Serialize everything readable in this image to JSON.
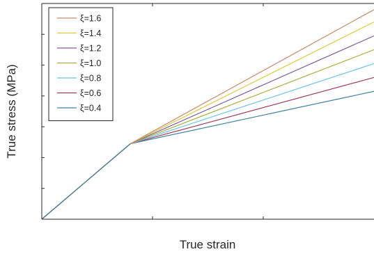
{
  "chart_data": {
    "type": "line",
    "title": "",
    "xlabel": "True strain",
    "ylabel": "True stress (MPa)",
    "xlim": [
      0,
      3
    ],
    "ylim": [
      0,
      14
    ],
    "grid": false,
    "tick_labels_shown": false,
    "legend_position": "top-left",
    "series": [
      {
        "name": "ξ=1.6",
        "color": "#c98a6a",
        "x": [
          0,
          0.8,
          3
        ],
        "y": [
          0,
          4.9,
          13.6
        ]
      },
      {
        "name": "ξ=1.4",
        "color": "#e0c840",
        "x": [
          0,
          0.8,
          3
        ],
        "y": [
          0,
          4.9,
          12.8
        ]
      },
      {
        "name": "ξ=1.2",
        "color": "#7a5e9c",
        "x": [
          0,
          0.8,
          3
        ],
        "y": [
          0,
          4.9,
          11.9
        ]
      },
      {
        "name": "ξ=1.0",
        "color": "#a8b040",
        "x": [
          0,
          0.8,
          3
        ],
        "y": [
          0,
          4.9,
          11.0
        ]
      },
      {
        "name": "ξ=0.8",
        "color": "#6cc4e4",
        "x": [
          0,
          0.8,
          3
        ],
        "y": [
          0,
          4.9,
          10.1
        ]
      },
      {
        "name": "ξ=0.6",
        "color": "#a03c5c",
        "x": [
          0,
          0.8,
          3
        ],
        "y": [
          0,
          4.9,
          9.2
        ]
      },
      {
        "name": "ξ=0.4",
        "color": "#3f7fa6",
        "x": [
          0,
          0.8,
          3
        ],
        "y": [
          0,
          4.9,
          8.3
        ]
      }
    ]
  }
}
